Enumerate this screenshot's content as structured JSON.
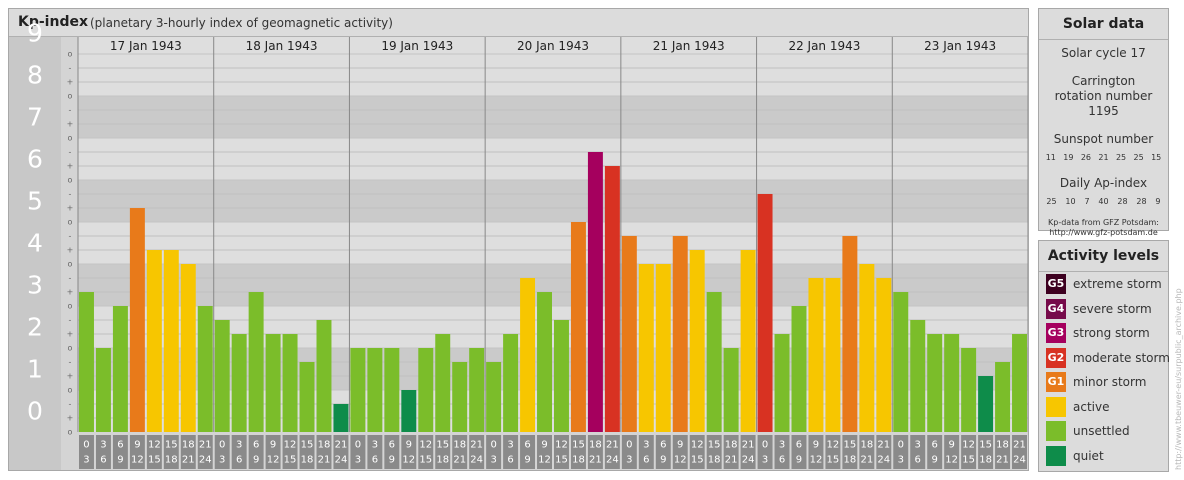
{
  "header": {
    "title": "Kp-index",
    "subtitle": "(planetary 3-hourly index of geomagnetic activity)"
  },
  "chart_data": {
    "type": "bar",
    "title": "Kp-index",
    "subtitle": "(planetary 3-hourly index of geomagnetic activity)",
    "ylim": [
      0,
      9
    ],
    "y_ticks": [
      "0",
      "1",
      "2",
      "3",
      "4",
      "5",
      "6",
      "7",
      "8",
      "9"
    ],
    "minor_ticks": [
      "o",
      "+",
      "-"
    ],
    "days": [
      "17 Jan 1943",
      "18 Jan 1943",
      "19 Jan 1943",
      "20 Jan 1943",
      "21 Jan 1943",
      "22 Jan 1943",
      "23 Jan 1943"
    ],
    "interval_start": [
      "0",
      "3",
      "6",
      "9",
      "12",
      "15",
      "18",
      "21"
    ],
    "interval_end": [
      "3",
      "6",
      "9",
      "12",
      "15",
      "18",
      "21",
      "24"
    ],
    "values": [
      [
        3.333,
        2.0,
        3.0,
        5.333,
        4.333,
        4.333,
        4.0,
        3.0
      ],
      [
        2.667,
        2.333,
        3.333,
        2.333,
        2.333,
        1.667,
        2.667,
        0.667
      ],
      [
        2.0,
        2.0,
        2.0,
        1.0,
        2.0,
        2.333,
        1.667,
        2.0
      ],
      [
        1.667,
        2.333,
        3.667,
        3.333,
        2.667,
        5.0,
        6.667,
        6.333
      ],
      [
        4.667,
        4.0,
        4.0,
        4.667,
        4.333,
        3.333,
        2.0,
        4.333
      ],
      [
        5.667,
        2.333,
        3.0,
        3.667,
        3.667,
        4.667,
        4.0,
        3.667
      ],
      [
        3.333,
        2.667,
        2.333,
        2.333,
        2.0,
        1.333,
        1.667,
        2.333
      ]
    ],
    "colors": {
      "quiet": "#0e8c4a",
      "unsettled": "#7bbd2a",
      "active": "#f7c600",
      "minor_storm": "#e87a1a",
      "moderate_storm": "#d83222",
      "strong_storm": "#a5005e",
      "severe_storm": "#760a4a",
      "extreme_storm": "#3d0020"
    },
    "grid": true
  },
  "solar": {
    "title": "Solar data",
    "cycle": "Solar cycle 17",
    "carrington": "Carrington rotation number 1195",
    "sunspot_label": "Sunspot number",
    "sunspot_values": [
      "11",
      "19",
      "26",
      "21",
      "25",
      "25",
      "15"
    ],
    "ap_label": "Daily Ap-index",
    "ap_values": [
      "25",
      "10",
      "7",
      "40",
      "28",
      "28",
      "9"
    ],
    "source_line1": "Kp-data from GFZ Potsdam:",
    "source_line2": "http://www.gfz-potsdam.de"
  },
  "legend": {
    "title": "Activity levels",
    "items": [
      {
        "code": "G5",
        "label": "extreme storm",
        "color": "#3d0020"
      },
      {
        "code": "G4",
        "label": "severe storm",
        "color": "#760a4a"
      },
      {
        "code": "G3",
        "label": "strong storm",
        "color": "#a5005e"
      },
      {
        "code": "G2",
        "label": "moderate storm",
        "color": "#d83222"
      },
      {
        "code": "G1",
        "label": "minor storm",
        "color": "#e87a1a"
      },
      {
        "code": "",
        "label": "active",
        "color": "#f7c600"
      },
      {
        "code": "",
        "label": "unsettled",
        "color": "#7bbd2a"
      },
      {
        "code": "",
        "label": "quiet",
        "color": "#0e8c4a"
      }
    ]
  },
  "watermark": "http://www.tbeuwer-eu/surpublic_archive.php"
}
